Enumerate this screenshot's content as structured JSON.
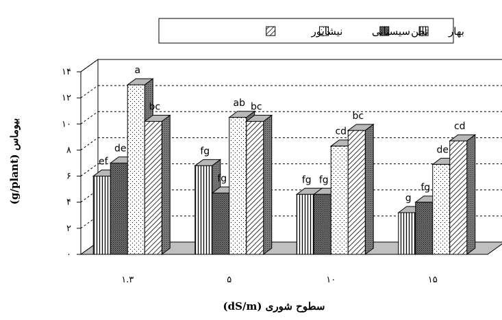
{
  "chart_data": {
    "type": "bar",
    "title": "",
    "xlabel": "سطوح شوری (dS/m)",
    "ylabel": "بیوماس (g/plant)",
    "categories": [
      "۱.۳",
      "۵",
      "۱۰",
      "۱۵"
    ],
    "ylim": [
      0,
      14
    ],
    "yticks": [
      0,
      2,
      4,
      6,
      8,
      10,
      12,
      14
    ],
    "ytick_labels": [
      "۰",
      "۲",
      "۴",
      "۶",
      "۸",
      "۱۰",
      "۱۲",
      "۱۴"
    ],
    "grid": "horizontal dashed",
    "legend_position": "top",
    "three_d": true,
    "series": [
      {
        "name": "بهار",
        "values": [
          6.0,
          6.8,
          4.6,
          3.2
        ],
        "labels": [
          "ef",
          "fg",
          "fg",
          "g"
        ],
        "pattern": "vertical-lines",
        "color": "#ffffff"
      },
      {
        "name": "تجن",
        "values": [
          7.0,
          4.7,
          4.6,
          4.0
        ],
        "labels": [
          "de",
          "fg",
          "fg",
          "fg"
        ],
        "pattern": "dark-dots",
        "color": "#555555"
      },
      {
        "name": "سیستانی",
        "values": [
          13.0,
          10.5,
          8.3,
          6.9
        ],
        "labels": [
          "a",
          "ab",
          "cd",
          "de"
        ],
        "pattern": "sparse-dots",
        "color": "#ffffff"
      },
      {
        "name": "نیشابور",
        "values": [
          10.2,
          10.2,
          9.5,
          8.7
        ],
        "labels": [
          "bc",
          "bc",
          "bc",
          "cd"
        ],
        "pattern": "diagonal-lines",
        "color": "#ffffff"
      }
    ]
  }
}
